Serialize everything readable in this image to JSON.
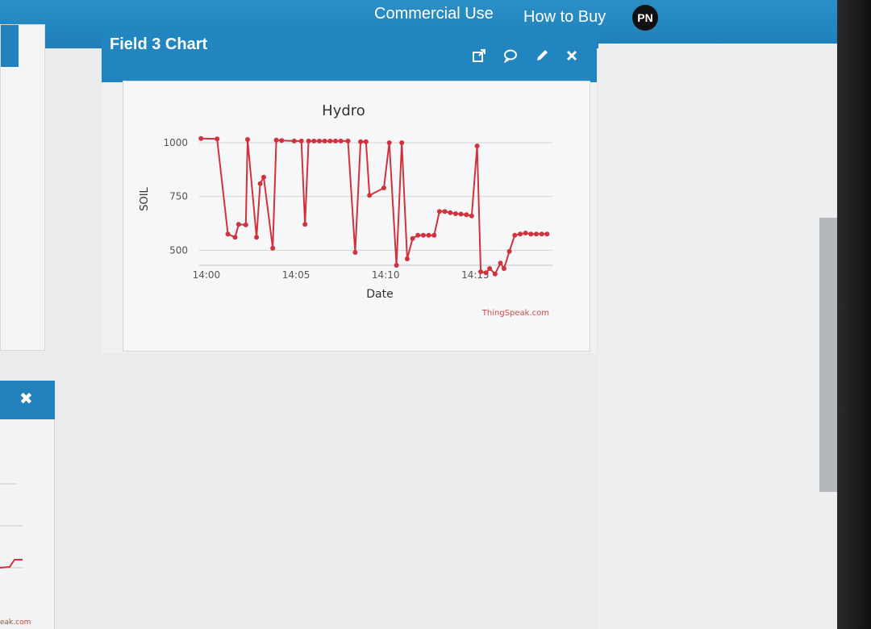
{
  "nav": {
    "commercial_use": "Commercial Use",
    "how_to_buy": "How to Buy",
    "avatar_initials": "PN"
  },
  "panel": {
    "title": "Field 3 Chart",
    "icons": [
      "external-link-icon",
      "comment-icon",
      "pencil-icon",
      "close-icon"
    ]
  },
  "left_widget": {
    "close_symbol": "✖",
    "link_fragment": "eak.com"
  },
  "colors": {
    "header_blue": "#2385c0",
    "series_red": "#d1323e"
  },
  "chart_data": {
    "type": "line",
    "title": "Hydro",
    "xlabel": "Date",
    "ylabel": "SOIL",
    "credit": "ThingSpeak.com",
    "x_ticks": [
      "14:00",
      "14:05",
      "14:10",
      "14:15"
    ],
    "y_ticks": [
      500,
      750,
      1000
    ],
    "x_range_minutes": [
      -0.4,
      19.3
    ],
    "ylim": [
      430,
      1060
    ],
    "series": [
      {
        "name": "",
        "color": "#d1323e",
        "points": [
          [
            -0.3,
            1020
          ],
          [
            0.6,
            1018
          ],
          [
            1.2,
            575
          ],
          [
            1.6,
            560
          ],
          [
            1.8,
            620
          ],
          [
            2.2,
            618
          ],
          [
            2.3,
            1015
          ],
          [
            2.8,
            560
          ],
          [
            3.0,
            810
          ],
          [
            3.2,
            840
          ],
          [
            3.7,
            510
          ],
          [
            3.9,
            1012
          ],
          [
            4.2,
            1010
          ],
          [
            4.9,
            1008
          ],
          [
            5.3,
            1008
          ],
          [
            5.5,
            620
          ],
          [
            5.7,
            1008
          ],
          [
            6.0,
            1008
          ],
          [
            6.3,
            1008
          ],
          [
            6.6,
            1008
          ],
          [
            6.9,
            1008
          ],
          [
            7.2,
            1008
          ],
          [
            7.5,
            1008
          ],
          [
            7.9,
            1008
          ],
          [
            8.3,
            490
          ],
          [
            8.6,
            1005
          ],
          [
            8.9,
            1005
          ],
          [
            9.1,
            755
          ],
          [
            9.9,
            790
          ],
          [
            10.2,
            1000
          ],
          [
            10.6,
            430
          ],
          [
            10.9,
            1000
          ],
          [
            11.2,
            460
          ],
          [
            11.5,
            555
          ],
          [
            11.8,
            570
          ],
          [
            12.1,
            570
          ],
          [
            12.4,
            570
          ],
          [
            12.7,
            570
          ],
          [
            13.0,
            680
          ],
          [
            13.3,
            680
          ],
          [
            13.6,
            675
          ],
          [
            13.9,
            670
          ],
          [
            14.2,
            668
          ],
          [
            14.5,
            665
          ],
          [
            14.8,
            660
          ],
          [
            15.1,
            985
          ],
          [
            15.3,
            400
          ],
          [
            15.6,
            395
          ],
          [
            15.8,
            415
          ],
          [
            16.1,
            390
          ],
          [
            16.4,
            440
          ],
          [
            16.6,
            415
          ],
          [
            16.9,
            495
          ],
          [
            17.2,
            570
          ],
          [
            17.5,
            575
          ],
          [
            17.8,
            580
          ],
          [
            18.1,
            575
          ],
          [
            18.4,
            575
          ],
          [
            18.7,
            575
          ],
          [
            19.0,
            575
          ]
        ]
      }
    ]
  }
}
